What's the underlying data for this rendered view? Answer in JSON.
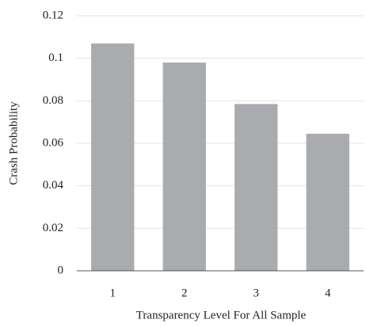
{
  "chart_data": {
    "type": "bar",
    "x_label": "Transparency Level For All Sample",
    "y_label": "Crash Probability",
    "categories": [
      "1",
      "2",
      "3",
      "4"
    ],
    "values": [
      0.107,
      0.098,
      0.0785,
      0.0645
    ],
    "color": "#a9abae",
    "ylim": [
      0,
      0.12
    ],
    "yticks": [
      0,
      0.02,
      0.04,
      0.06,
      0.08,
      0.1,
      0.12
    ],
    "grid": true
  }
}
